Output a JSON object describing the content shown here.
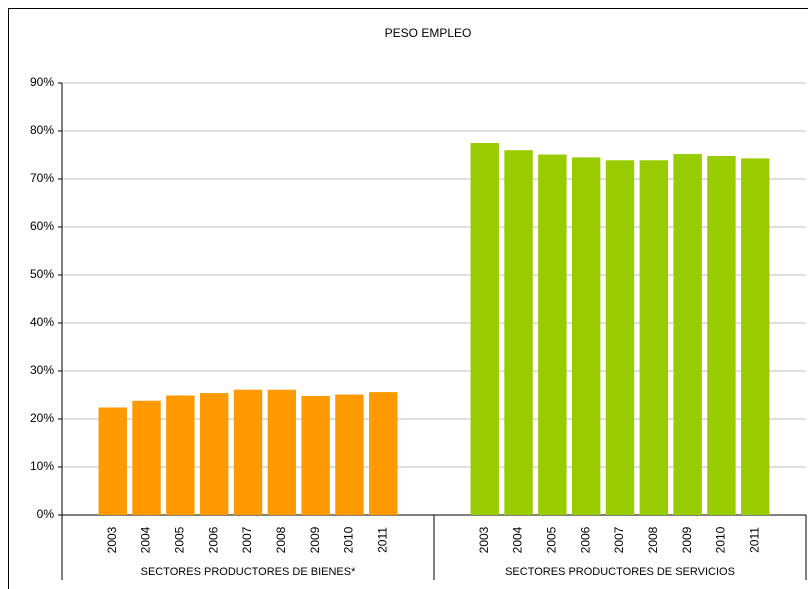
{
  "chart_data": {
    "type": "grouped-bar",
    "title": "PESO EMPLEO",
    "groups": [
      {
        "name": "SECTORES PRODUCTORES DE BIENES*",
        "color": "#ff9900",
        "categories": [
          "2003",
          "2004",
          "2005",
          "2006",
          "2007",
          "2008",
          "2009",
          "2010",
          "2011"
        ],
        "values": [
          22.4,
          23.8,
          24.9,
          25.4,
          26.1,
          26.1,
          24.8,
          25.1,
          25.6
        ]
      },
      {
        "name": "SECTORES PRODUCTORES DE SERVICIOS",
        "color": "#99cc00",
        "categories": [
          "2003",
          "2004",
          "2005",
          "2006",
          "2007",
          "2008",
          "2009",
          "2010",
          "2011"
        ],
        "values": [
          77.5,
          76.0,
          75.1,
          74.5,
          73.9,
          73.9,
          75.2,
          74.8,
          74.3
        ]
      }
    ],
    "ylim": [
      0,
      90
    ],
    "yticks": [
      {
        "value": 0,
        "label": "0%"
      },
      {
        "value": 10,
        "label": "10%"
      },
      {
        "value": 20,
        "label": "20%"
      },
      {
        "value": 30,
        "label": "30%"
      },
      {
        "value": 40,
        "label": "40%"
      },
      {
        "value": 50,
        "label": "50%"
      },
      {
        "value": 60,
        "label": "60%"
      },
      {
        "value": 70,
        "label": "70%"
      },
      {
        "value": 80,
        "label": "80%"
      },
      {
        "value": 90,
        "label": "90%"
      }
    ],
    "grid": true
  }
}
